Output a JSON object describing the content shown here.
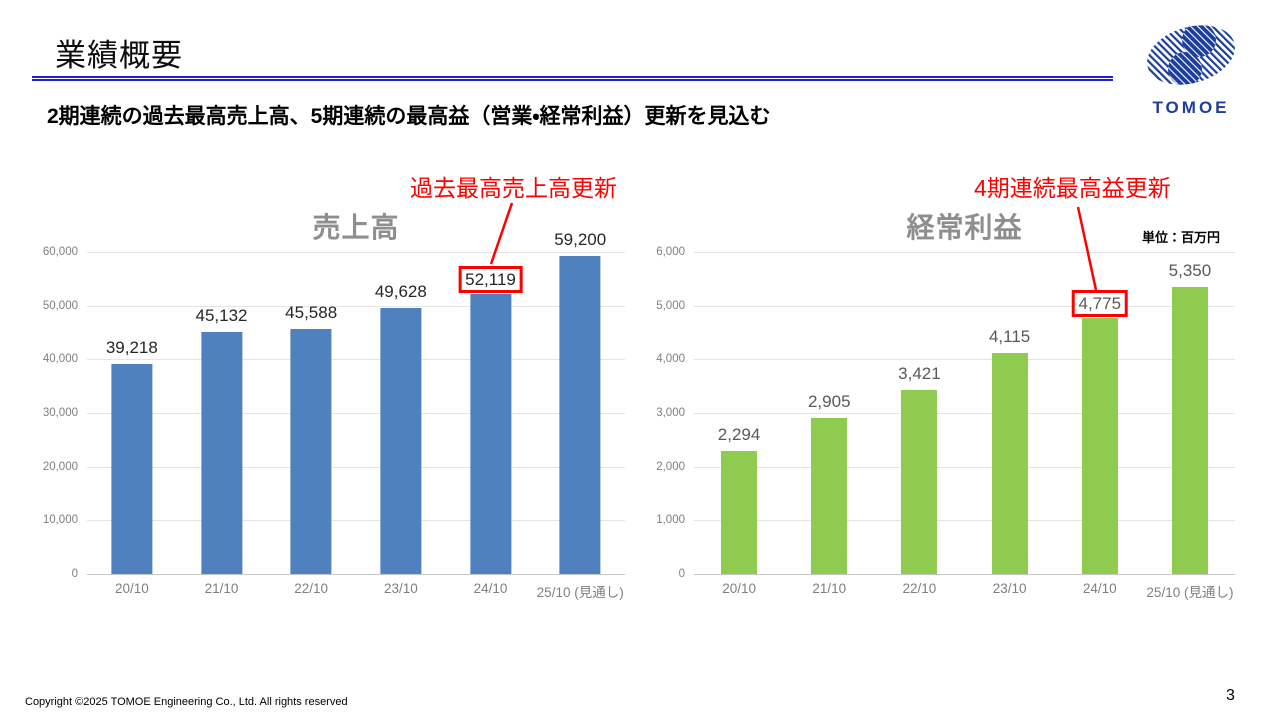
{
  "slide": {
    "title": "業績概要",
    "subtitle": "2期連続の過去最高売上高、5期連続の最高益（営業・経常利益）更新を見込む",
    "unit_label": "単位：百万円",
    "footer": "Copyright ©2025 TOMOE Engineering Co., Ltd. All rights reserved",
    "page_number": "3",
    "logo_text": "TOMOE"
  },
  "annotations": {
    "sales_record": "過去最高売上高更新",
    "profit_record": "4期連続最高益更新"
  },
  "colors": {
    "bar_blue": "#4e81bd",
    "bar_green": "#8ecb4f",
    "accent_red": "#fe0000",
    "underline_blue": "#1f1fd9",
    "title_gray": "#8e8e8e",
    "logo_blue": "#1c3e9c"
  },
  "chart_data": [
    {
      "type": "bar",
      "title": "売上高",
      "categories": [
        "20/10",
        "21/10",
        "22/10",
        "23/10",
        "24/10",
        "25/10 (見通し)"
      ],
      "values": [
        39218,
        45132,
        45588,
        49628,
        52119,
        59200
      ],
      "labels": [
        "39,218",
        "45,132",
        "45,588",
        "49,628",
        "52,119",
        "59,200"
      ],
      "highlight_index": 4,
      "ylim": [
        0,
        60000
      ],
      "yticks": [
        "60,000",
        "50,000",
        "40,000",
        "30,000",
        "20,000",
        "10,000",
        "0"
      ],
      "bar_color": "#4e81bd",
      "label_color": "#262626",
      "grid": true,
      "legend": "none",
      "unit": "百万円"
    },
    {
      "type": "bar",
      "title": "経常利益",
      "categories": [
        "20/10",
        "21/10",
        "22/10",
        "23/10",
        "24/10",
        "25/10 (見通し)"
      ],
      "values": [
        2294,
        2905,
        3421,
        4115,
        4775,
        5350
      ],
      "labels": [
        "2,294",
        "2,905",
        "3,421",
        "4,115",
        "4,775",
        "5,350"
      ],
      "highlight_index": 4,
      "ylim": [
        0,
        6000
      ],
      "yticks": [
        "6,000",
        "5,000",
        "4,000",
        "3,000",
        "2,000",
        "1,000",
        "0"
      ],
      "bar_color": "#8ecb4f",
      "label_color": "#595959",
      "grid": true,
      "legend": "none",
      "unit": "百万円"
    }
  ]
}
